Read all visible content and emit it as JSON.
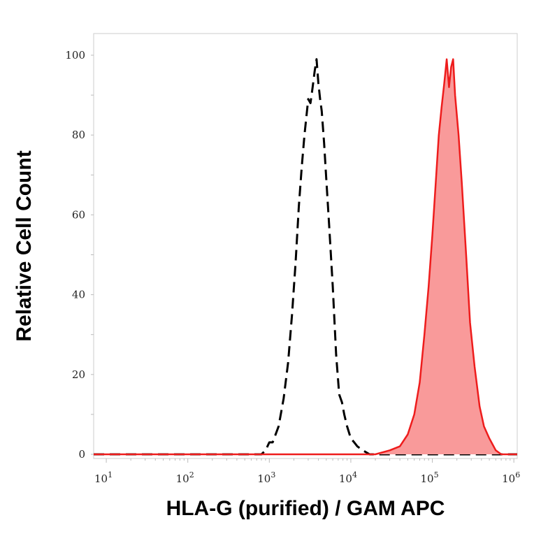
{
  "chart_data": {
    "type": "area",
    "xlabel": "HLA-G (purified) / GAM APC",
    "ylabel": "Relative Cell Count",
    "x_scale": "log",
    "xlim": [
      7,
      1100000
    ],
    "ylim": [
      -1,
      100
    ],
    "y_ticks": [
      0,
      20,
      40,
      60,
      80,
      100
    ],
    "x_ticks": [
      {
        "value": 10,
        "base": "10",
        "exp": "1"
      },
      {
        "value": 100,
        "base": "10",
        "exp": "2"
      },
      {
        "value": 1000,
        "base": "10",
        "exp": "3"
      },
      {
        "value": 10000,
        "base": "10",
        "exp": "4"
      },
      {
        "value": 100000,
        "base": "10",
        "exp": "5"
      },
      {
        "value": 1000000,
        "base": "10",
        "exp": "6"
      }
    ],
    "grid": false,
    "series": [
      {
        "style": "dashed",
        "color": "#000000",
        "points": [
          [
            7,
            0
          ],
          [
            800,
            0
          ],
          [
            900,
            1
          ],
          [
            1000,
            3
          ],
          [
            1100,
            3
          ],
          [
            1300,
            7
          ],
          [
            1500,
            14
          ],
          [
            1700,
            23
          ],
          [
            1900,
            35
          ],
          [
            2100,
            48
          ],
          [
            2300,
            62
          ],
          [
            2500,
            72
          ],
          [
            2700,
            80
          ],
          [
            2900,
            86
          ],
          [
            3000,
            89
          ],
          [
            3200,
            88
          ],
          [
            3400,
            92
          ],
          [
            3600,
            96
          ],
          [
            3800,
            99
          ],
          [
            4000,
            93
          ],
          [
            4200,
            89
          ],
          [
            4400,
            86
          ],
          [
            4700,
            78
          ],
          [
            5000,
            69
          ],
          [
            5400,
            58
          ],
          [
            6000,
            42
          ],
          [
            6600,
            25
          ],
          [
            7200,
            15
          ],
          [
            7800,
            13
          ],
          [
            8300,
            10
          ],
          [
            9000,
            7
          ],
          [
            10000,
            4
          ],
          [
            11000,
            3
          ],
          [
            12000,
            2
          ],
          [
            14000,
            1
          ],
          [
            17000,
            0
          ],
          [
            1100000,
            0
          ]
        ]
      },
      {
        "style": "filled",
        "color": "#ee1c1c",
        "fill": "#f99a9a",
        "points": [
          [
            7,
            0
          ],
          [
            20000,
            0
          ],
          [
            30000,
            1
          ],
          [
            40000,
            2
          ],
          [
            50000,
            5
          ],
          [
            60000,
            10
          ],
          [
            70000,
            18
          ],
          [
            80000,
            30
          ],
          [
            90000,
            42
          ],
          [
            100000,
            55
          ],
          [
            110000,
            68
          ],
          [
            120000,
            80
          ],
          [
            130000,
            87
          ],
          [
            140000,
            93
          ],
          [
            150000,
            99
          ],
          [
            160000,
            92
          ],
          [
            170000,
            97
          ],
          [
            180000,
            99
          ],
          [
            190000,
            90
          ],
          [
            210000,
            80
          ],
          [
            230000,
            68
          ],
          [
            260000,
            50
          ],
          [
            290000,
            33
          ],
          [
            330000,
            22
          ],
          [
            380000,
            12
          ],
          [
            430000,
            7
          ],
          [
            500000,
            4
          ],
          [
            600000,
            1
          ],
          [
            700000,
            0
          ],
          [
            1100000,
            0
          ]
        ]
      }
    ]
  }
}
